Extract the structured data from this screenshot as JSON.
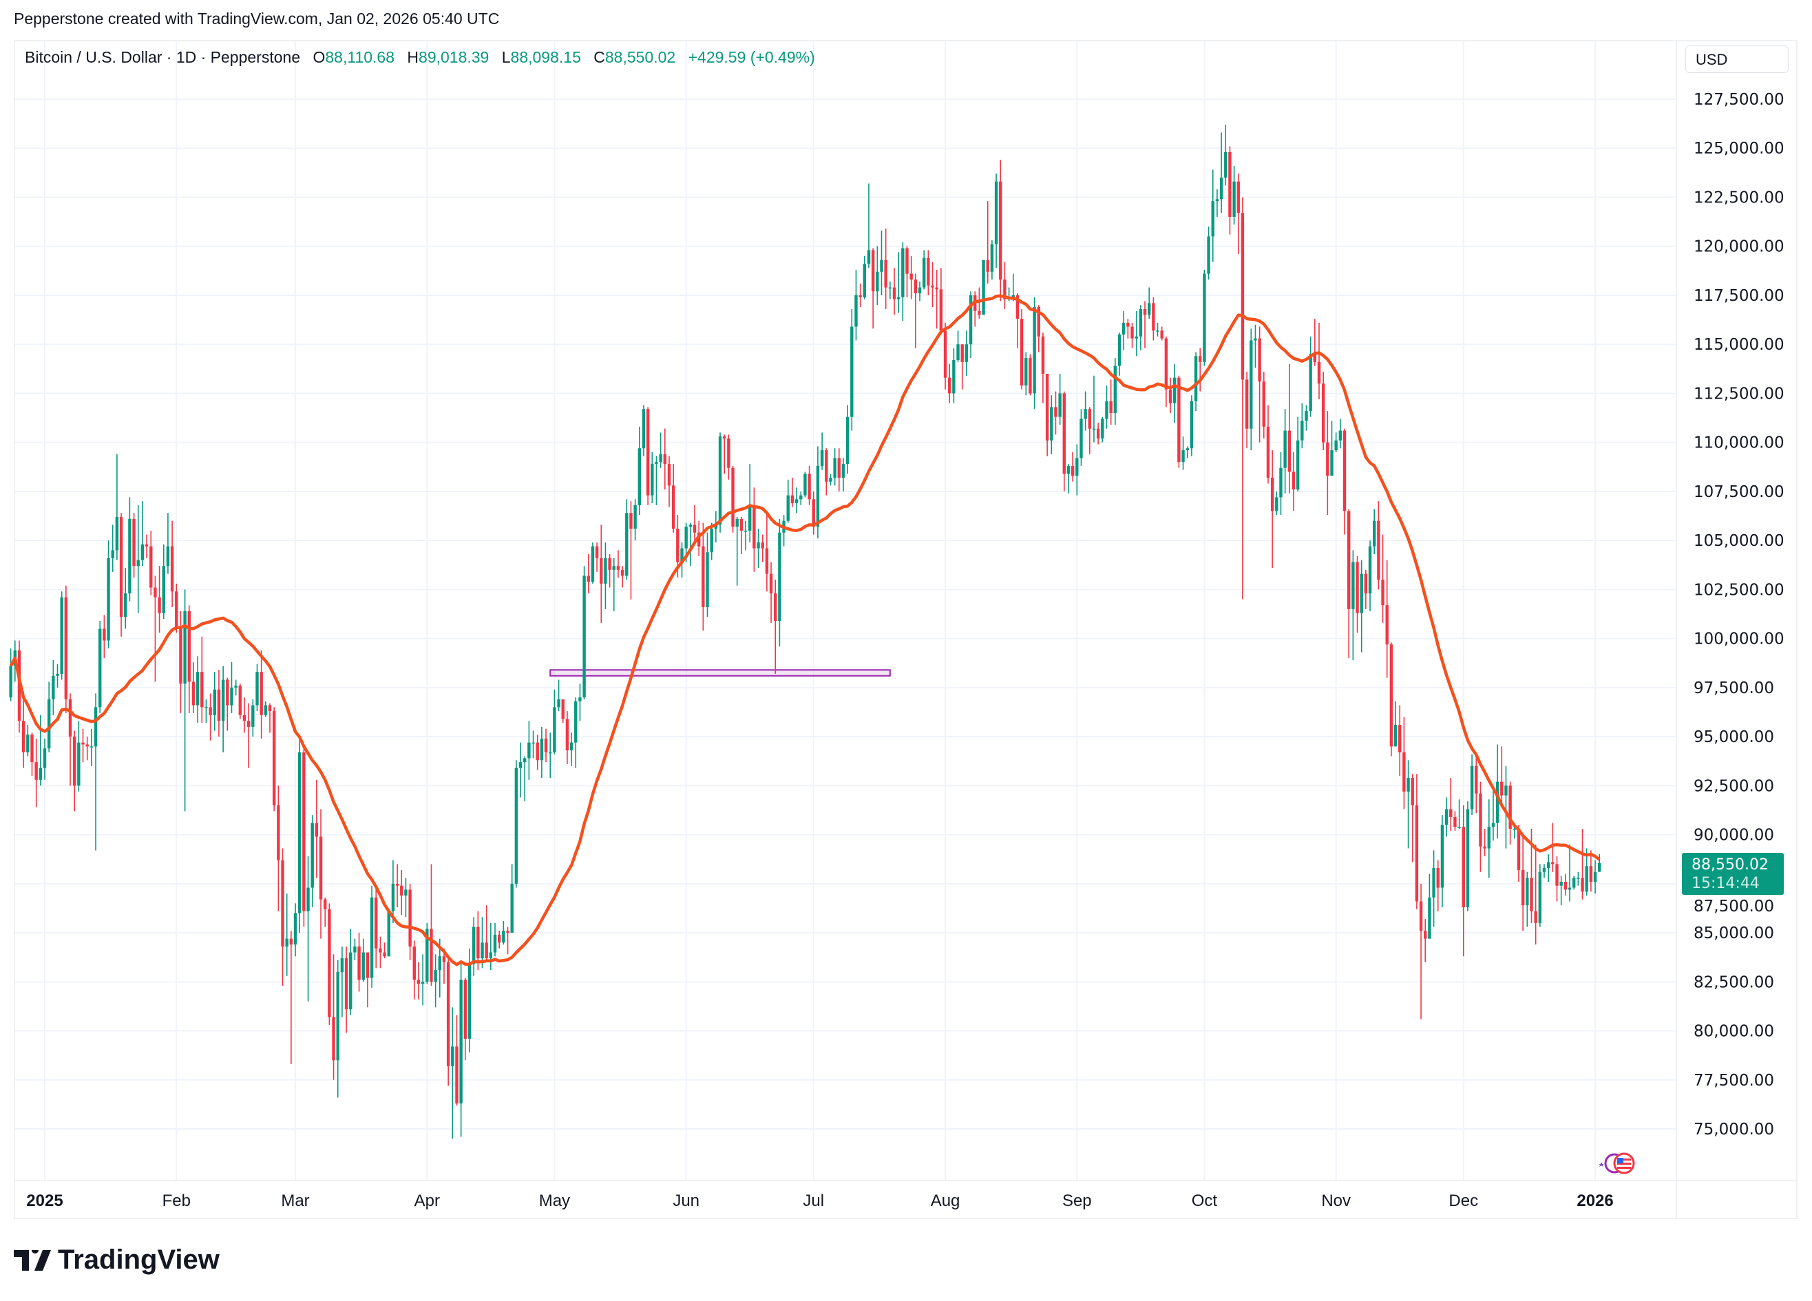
{
  "credit": "Pepperstone created with TradingView.com, Jan 02, 2026 05:40 UTC",
  "legend": {
    "symbol": "Bitcoin / U.S. Dollar · 1D · Pepperstone",
    "o_label": "O",
    "o": "88,110.68",
    "h_label": "H",
    "h": "89,018.39",
    "l_label": "L",
    "l": "88,098.15",
    "c_label": "C",
    "c": "88,550.02",
    "change": "+429.59 (+0.49%)"
  },
  "currency": "USD",
  "price_tag": {
    "price": "88,550.02",
    "countdown": "15:14:44"
  },
  "logo": "TradingView",
  "colors": {
    "up": "#089981",
    "down": "#f23645",
    "ma": "#f4511e",
    "zone": "#9c27b0",
    "grid": "#f0f3fa"
  },
  "chart_data": {
    "type": "candlestick",
    "title": "Bitcoin / U.S. Dollar · 1D · Pepperstone",
    "ylim": [
      72500,
      128500
    ],
    "y_ticks": [
      "127,500.00",
      "125,000.00",
      "122,500.00",
      "120,000.00",
      "117,500.00",
      "115,000.00",
      "112,500.00",
      "110,000.00",
      "107,500.00",
      "105,000.00",
      "102,500.00",
      "100,000.00",
      "97,500.00",
      "95,000.00",
      "92,500.00",
      "90,000.00",
      "87,500.00",
      "85,000.00",
      "82,500.00",
      "80,000.00",
      "77,500.00",
      "75,000.00"
    ],
    "y_tick_values": [
      127500,
      125000,
      122500,
      120000,
      117500,
      115000,
      112500,
      110000,
      107500,
      105000,
      102500,
      100000,
      97500,
      95000,
      92500,
      90000,
      87500,
      85000,
      82500,
      80000,
      77500,
      75000
    ],
    "x_ticks": [
      {
        "label": "2025",
        "date": "2025-01-01",
        "bold": true
      },
      {
        "label": "Feb",
        "date": "2025-02-01"
      },
      {
        "label": "Mar",
        "date": "2025-03-01"
      },
      {
        "label": "Apr",
        "date": "2025-04-01"
      },
      {
        "label": "May",
        "date": "2025-05-01"
      },
      {
        "label": "Jun",
        "date": "2025-06-01"
      },
      {
        "label": "Jul",
        "date": "2025-07-01"
      },
      {
        "label": "Aug",
        "date": "2025-08-01"
      },
      {
        "label": "Sep",
        "date": "2025-09-01"
      },
      {
        "label": "Oct",
        "date": "2025-10-01"
      },
      {
        "label": "Nov",
        "date": "2025-11-01"
      },
      {
        "label": "Dec",
        "date": "2025-12-01"
      },
      {
        "label": "2026",
        "date": "2026-01-01",
        "bold": true
      }
    ],
    "start_date": "2024-12-24",
    "first_open": 97000,
    "last_open": 88110.68,
    "close": [
      98600,
      99400,
      95800,
      94200,
      95100,
      93700,
      92800,
      93400,
      94400,
      96900,
      98100,
      98200,
      102100,
      96900,
      95000,
      92500,
      94700,
      94600,
      94500,
      94500,
      96500,
      100500,
      99900,
      104100,
      104500,
      106200,
      101100,
      102300,
      106100,
      103700,
      104000,
      104800,
      104700,
      102600,
      102100,
      101300,
      103700,
      104700,
      102400,
      100600,
      97700,
      101400,
      97800,
      96600,
      98300,
      96500,
      96500,
      96100,
      97400,
      95800,
      97900,
      96600,
      97500,
      97600,
      96100,
      95800,
      95500,
      96600,
      98300,
      96100,
      96600,
      96300,
      91500,
      88700,
      84300,
      84700,
      84400,
      86000,
      94200,
      86100,
      87300,
      90600,
      89900,
      86700,
      86200,
      80700,
      78500,
      83000,
      83700,
      81100,
      84000,
      84300,
      82600,
      84000,
      82700,
      86800,
      84200,
      84000,
      83800,
      86100,
      87500,
      87400,
      86900,
      87200,
      84300,
      82600,
      82400,
      82500,
      85200,
      82500,
      83100,
      83800,
      83500,
      78200,
      79200,
      76300,
      82600,
      79600,
      83400,
      85300,
      83700,
      84500,
      83700,
      84000,
      84900,
      84500,
      85100,
      85000,
      87500,
      93400,
      93700,
      93900,
      94700,
      94700,
      93800,
      94900,
      94200,
      94200,
      96500,
      96900,
      95900,
      94300,
      94700,
      96800,
      97000,
      103200,
      102900,
      104700,
      104100,
      102800,
      104100,
      103500,
      103700,
      103500,
      103200,
      106400,
      105600,
      106800,
      109700,
      111700,
      107300,
      108900,
      109000,
      109400,
      108900,
      107800,
      105600,
      103900,
      104600,
      105700,
      105800,
      105400,
      104700,
      101600,
      104400,
      105600,
      105800,
      110300,
      110200,
      108700,
      105700,
      106100,
      105500,
      105500,
      106800,
      104600,
      104900,
      104600,
      103300,
      102300,
      100900,
      105400,
      106000,
      107300,
      106900,
      107100,
      107300,
      108400,
      107100,
      105700,
      108800,
      109600,
      108000,
      108200,
      109200,
      108200,
      108900,
      111300,
      115900,
      117500,
      117400,
      119100,
      119800,
      117700,
      118700,
      119300,
      117900,
      117900,
      117300,
      117400,
      119900,
      118600,
      118300,
      117600,
      117900,
      119400,
      118000,
      117900,
      117800,
      115700,
      113300,
      112500,
      114200,
      115000,
      114100,
      115000,
      117500,
      116700,
      116500,
      119300,
      118700,
      120100,
      123300,
      118300,
      117300,
      117400,
      117500,
      116300,
      112900,
      114300,
      112500,
      116900,
      115400,
      113500,
      110100,
      111800,
      111300,
      112500,
      108400,
      108800,
      108300,
      109200,
      111200,
      111700,
      110700,
      110700,
      110200,
      111200,
      112100,
      111500,
      113900,
      115500,
      116100,
      115900,
      115300,
      115400,
      116800,
      116500,
      117100,
      115700,
      115700,
      115300,
      112700,
      112000,
      113300,
      109000,
      109600,
      109700,
      112100,
      114400,
      114100,
      118600,
      120500,
      122300,
      122400,
      123500,
      124800,
      121500,
      123300,
      121700,
      113200,
      110700,
      115200,
      115300,
      113100,
      110800,
      108200,
      106500,
      107200,
      108700,
      110600,
      108500,
      107600,
      110100,
      111100,
      111600,
      114500,
      114100,
      113000,
      110000,
      108300,
      109600,
      110100,
      110600,
      106500,
      101500,
      103900,
      101300,
      103300,
      102300,
      104700,
      106000,
      103000,
      101700,
      99700,
      94500,
      95600,
      94200,
      92200,
      92900,
      91500,
      86600,
      85100,
      84700,
      86800,
      88300,
      87300,
      90500,
      91300,
      90900,
      90400,
      90400,
      86300,
      91300,
      93500,
      92100,
      89400,
      89300,
      90400,
      90600,
      92700,
      92000,
      92500,
      90300,
      90300,
      88200,
      86400,
      87800,
      86100,
      85500,
      88100,
      88300,
      88600,
      88500,
      87400,
      87600,
      87200,
      87300,
      87800,
      87800,
      87100,
      88400,
      87600,
      88100,
      88550.02
    ],
    "high": [
      99500,
      99900,
      99900,
      97300,
      95600,
      95200,
      94900,
      96100,
      94900,
      97800,
      98900,
      98700,
      102400,
      102700,
      97200,
      95300,
      95800,
      95400,
      95000,
      95400,
      97200,
      100900,
      101200,
      105000,
      105800,
      109400,
      106400,
      103600,
      107200,
      106400,
      106800,
      107000,
      105300,
      105500,
      103200,
      103700,
      104800,
      106400,
      106000,
      102800,
      101400,
      102500,
      101700,
      98800,
      99100,
      100100,
      96900,
      97200,
      98300,
      98400,
      98600,
      98000,
      98800,
      97900,
      97700,
      97000,
      96700,
      96900,
      98700,
      99400,
      96800,
      96700,
      96500,
      92500,
      89300,
      87000,
      85100,
      86500,
      95000,
      94400,
      88900,
      91000,
      92800,
      91300,
      86800,
      86500,
      83900,
      83600,
      84300,
      84300,
      85200,
      84700,
      85000,
      84700,
      84000,
      87400,
      87400,
      84800,
      84500,
      86100,
      88700,
      88500,
      88200,
      87800,
      87500,
      84600,
      83500,
      83900,
      85500,
      88500,
      83900,
      84700,
      84200,
      83700,
      81200,
      80800,
      83500,
      82700,
      84200,
      85800,
      86100,
      85800,
      86400,
      85500,
      85500,
      85100,
      85600,
      85300,
      88500,
      93800,
      94700,
      94000,
      95800,
      95300,
      95100,
      95500,
      95400,
      95200,
      97400,
      97900,
      96900,
      96300,
      95200,
      97000,
      97700,
      103700,
      104300,
      104900,
      104900,
      105800,
      104900,
      104300,
      104100,
      104500,
      103700,
      107100,
      107000,
      107100,
      110800,
      111900,
      111800,
      109500,
      109300,
      110500,
      110700,
      109300,
      108900,
      106300,
      104900,
      105900,
      105900,
      106800,
      106000,
      105900,
      105400,
      105900,
      106500,
      110500,
      110400,
      110400,
      108800,
      106200,
      106200,
      106000,
      108900,
      107700,
      105600,
      105300,
      106500,
      103900,
      103000,
      106100,
      106300,
      108100,
      108200,
      107700,
      107500,
      108500,
      108800,
      107500,
      109800,
      110500,
      109700,
      108400,
      109700,
      109700,
      109200,
      111900,
      116800,
      118800,
      118100,
      119500,
      123200,
      119900,
      120000,
      120800,
      120900,
      118200,
      118900,
      119700,
      120200,
      120000,
      119500,
      118600,
      118200,
      119800,
      119800,
      119200,
      118800,
      118900,
      116100,
      114000,
      114800,
      115700,
      115000,
      115700,
      117700,
      117700,
      117900,
      119300,
      122300,
      120300,
      123700,
      124400,
      119200,
      117900,
      118600,
      117600,
      116800,
      114600,
      114500,
      117400,
      117000,
      115600,
      113500,
      112400,
      112600,
      113500,
      112600,
      108900,
      109500,
      109900,
      111700,
      112600,
      111800,
      113400,
      111000,
      111300,
      112900,
      113200,
      114300,
      115600,
      116700,
      116300,
      116100,
      116700,
      117000,
      117200,
      117900,
      117400,
      116100,
      115900,
      115400,
      113300,
      114000,
      113400,
      110300,
      109800,
      112400,
      114600,
      114800,
      118800,
      121000,
      123900,
      122900,
      125800,
      126200,
      125100,
      124100,
      123700,
      122500,
      113600,
      115800,
      116000,
      115900,
      113600,
      111900,
      109600,
      107500,
      109500,
      111700,
      114000,
      109500,
      111300,
      112000,
      111900,
      115400,
      116300,
      116100,
      113600,
      111600,
      111100,
      110500,
      111200,
      110700,
      106600,
      104500,
      104200,
      104000,
      103500,
      105000,
      106600,
      107000,
      105300,
      104000,
      99800,
      96800,
      96600,
      96000,
      93800,
      93100,
      93100,
      87500,
      85700,
      88000,
      89200,
      88700,
      91000,
      91900,
      92900,
      91200,
      91800,
      91500,
      91700,
      94100,
      94000,
      92700,
      90300,
      91800,
      92300,
      94600,
      94500,
      93500,
      92700,
      90600,
      90500,
      90000,
      88100,
      90300,
      89500,
      88500,
      88500,
      89000,
      90600,
      88900,
      87900,
      88000,
      89500,
      87900,
      88100,
      90300,
      89300,
      89200,
      88700,
      89018.39
    ],
    "low": [
      96800,
      97800,
      95200,
      93400,
      94000,
      93000,
      91400,
      92500,
      92800,
      94200,
      96100,
      97500,
      97900,
      96200,
      92500,
      91200,
      92200,
      93700,
      93800,
      93500,
      89200,
      96200,
      99000,
      99500,
      103400,
      104000,
      100100,
      100500,
      101900,
      103100,
      101300,
      103700,
      104100,
      102200,
      97800,
      100300,
      101000,
      103300,
      101600,
      100300,
      96200,
      91200,
      96200,
      96200,
      95700,
      95700,
      95700,
      94800,
      95300,
      95000,
      94200,
      95300,
      96200,
      97100,
      95900,
      95200,
      93400,
      95000,
      96300,
      94900,
      96000,
      95200,
      91200,
      86100,
      82300,
      82800,
      78300,
      83800,
      85000,
      85300,
      81500,
      86300,
      87800,
      84700,
      85300,
      80300,
      77500,
      76600,
      80700,
      79900,
      80800,
      83600,
      82000,
      82500,
      81200,
      82200,
      83200,
      83200,
      83700,
      83800,
      85500,
      86300,
      85900,
      85800,
      83600,
      81600,
      81600,
      81300,
      82400,
      82300,
      81200,
      81700,
      82400,
      77200,
      74500,
      76200,
      74600,
      78500,
      78900,
      82800,
      83100,
      83200,
      83600,
      83100,
      83800,
      84200,
      84400,
      83900,
      85100,
      87300,
      91900,
      91700,
      92800,
      93900,
      93300,
      92900,
      93700,
      92900,
      94100,
      96300,
      95700,
      93600,
      93500,
      93400,
      95800,
      96900,
      102300,
      102800,
      103400,
      100800,
      101500,
      102600,
      101400,
      103100,
      102600,
      103000,
      102000,
      105000,
      106300,
      109300,
      106800,
      106900,
      106800,
      108700,
      107600,
      106700,
      105400,
      103100,
      103100,
      103900,
      103700,
      105000,
      104200,
      100400,
      101100,
      104000,
      104900,
      105400,
      108400,
      108100,
      105400,
      102700,
      104300,
      104500,
      104900,
      103400,
      103600,
      103900,
      102400,
      100800,
      98200,
      99600,
      104700,
      105900,
      106700,
      106400,
      106800,
      107200,
      106800,
      105300,
      105100,
      108600,
      107300,
      107800,
      107800,
      107500,
      107500,
      108400,
      110600,
      115200,
      116900,
      117300,
      118900,
      115800,
      117000,
      117500,
      116800,
      117300,
      116500,
      116600,
      116200,
      117400,
      117300,
      114800,
      117200,
      117800,
      117500,
      116900,
      115800,
      115500,
      112700,
      112000,
      112000,
      114100,
      112700,
      113400,
      114300,
      115900,
      116300,
      116500,
      118100,
      118300,
      118900,
      117200,
      116800,
      117200,
      117200,
      114800,
      112700,
      112400,
      112400,
      111700,
      114600,
      112000,
      109300,
      109400,
      110400,
      110900,
      107500,
      107400,
      108000,
      107300,
      108800,
      110600,
      109400,
      110000,
      109900,
      110000,
      110700,
      110900,
      110900,
      113400,
      114700,
      115300,
      114800,
      114400,
      114700,
      114800,
      116300,
      115200,
      115400,
      115200,
      111800,
      111500,
      111000,
      108700,
      108600,
      109200,
      109300,
      111600,
      112600,
      113900,
      118300,
      119200,
      121500,
      121700,
      123100,
      120600,
      121100,
      119600,
      102000,
      109700,
      109600,
      113800,
      110000,
      110200,
      107900,
      103600,
      106300,
      106300,
      107400,
      107400,
      106500,
      107500,
      109700,
      110600,
      111300,
      113900,
      112200,
      109600,
      106300,
      108400,
      109500,
      109700,
      105300,
      99000,
      98900,
      100300,
      99300,
      101500,
      101400,
      104300,
      102500,
      100800,
      98000,
      94000,
      94500,
      93000,
      91300,
      89300,
      88600,
      86200,
      80600,
      83500,
      84700,
      85300,
      86100,
      86300,
      89900,
      90200,
      90200,
      90300,
      83800,
      86100,
      91000,
      91100,
      88100,
      88900,
      87800,
      89700,
      89800,
      91500,
      89300,
      89500,
      89800,
      87600,
      85100,
      85300,
      85500,
      84400,
      85300,
      87800,
      87600,
      88100,
      86600,
      86400,
      86900,
      86600,
      87200,
      87400,
      86700,
      86900,
      87100,
      87000,
      88098.15
    ],
    "moving_average": {
      "color": "#f4511e"
    },
    "annotations": [
      {
        "type": "rectangle",
        "start": "2025-04-30",
        "end": "2025-07-19",
        "top": 98400,
        "bottom": 98100,
        "color": "#9c27b0"
      }
    ]
  }
}
